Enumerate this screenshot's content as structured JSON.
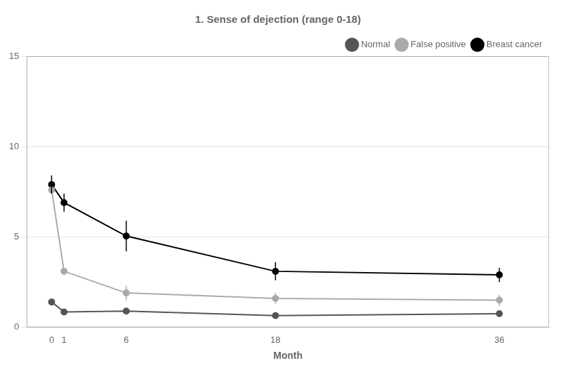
{
  "chart_data": {
    "type": "line",
    "title": "1. Sense of dejection (range 0-18)",
    "xlabel": "Month",
    "x": [
      0,
      1,
      6,
      18,
      36
    ],
    "xlim": [
      -2,
      40
    ],
    "xticks": [
      0,
      1,
      6,
      18,
      36
    ],
    "ylim": [
      0,
      15
    ],
    "yticks": [
      0,
      5,
      10,
      15
    ],
    "grid": "y",
    "legend": "upper right",
    "marker": "circle",
    "series": [
      {
        "name": "Normal",
        "color": "#555555",
        "values": [
          1.4,
          0.85,
          0.9,
          0.65,
          0.75
        ],
        "yerr": [
          0.0,
          0.0,
          0.0,
          0.0,
          0.0
        ]
      },
      {
        "name": "False positive",
        "color": "#aaaaaa",
        "values": [
          7.6,
          3.1,
          1.9,
          1.6,
          1.5
        ],
        "yerr": [
          0.0,
          0.0,
          0.4,
          0.3,
          0.3
        ]
      },
      {
        "name": "Breast cancer",
        "color": "#000000",
        "values": [
          7.9,
          6.9,
          5.05,
          3.1,
          2.9
        ],
        "yerr": [
          0.5,
          0.5,
          0.85,
          0.5,
          0.4
        ]
      }
    ]
  }
}
